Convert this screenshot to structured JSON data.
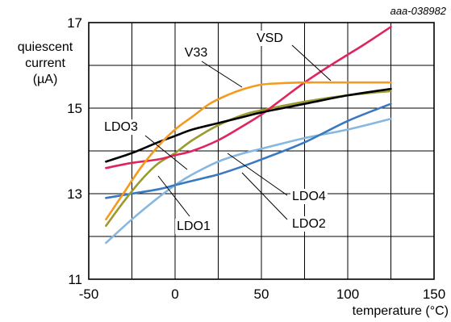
{
  "figure_id": "aaa-038982",
  "chart_data": {
    "type": "line",
    "title": "",
    "xlabel": "temperature (°C)",
    "ylabel": "quiescent current (µA)",
    "ylabel_lines": [
      "quiescent",
      "current",
      "(µA)"
    ],
    "xlim": [
      -50,
      150
    ],
    "ylim": [
      11,
      17
    ],
    "x_ticks": [
      -50,
      0,
      50,
      100,
      150
    ],
    "y_ticks": [
      11,
      13,
      15,
      17
    ],
    "grid": true,
    "legend": "none",
    "series": [
      {
        "name": "VSD",
        "color": "#e0245e",
        "points": [
          [
            -40,
            13.6
          ],
          [
            -25,
            13.72
          ],
          [
            -10,
            13.8
          ],
          [
            0,
            13.9
          ],
          [
            10,
            14.0
          ],
          [
            25,
            14.25
          ],
          [
            40,
            14.6
          ],
          [
            50,
            14.85
          ],
          [
            60,
            15.15
          ],
          [
            75,
            15.6
          ],
          [
            90,
            16.0
          ],
          [
            100,
            16.25
          ],
          [
            110,
            16.5
          ],
          [
            125,
            16.9
          ]
        ]
      },
      {
        "name": "V33",
        "color": "#f39a1f",
        "points": [
          [
            -40,
            12.4
          ],
          [
            -30,
            13.0
          ],
          [
            -20,
            13.6
          ],
          [
            -10,
            14.1
          ],
          [
            0,
            14.5
          ],
          [
            10,
            14.8
          ],
          [
            20,
            15.1
          ],
          [
            30,
            15.3
          ],
          [
            40,
            15.45
          ],
          [
            50,
            15.55
          ],
          [
            60,
            15.58
          ],
          [
            75,
            15.6
          ],
          [
            100,
            15.6
          ],
          [
            125,
            15.6
          ]
        ]
      },
      {
        "name": "LDO3",
        "color": "#000000",
        "points": [
          [
            -40,
            13.75
          ],
          [
            -25,
            13.95
          ],
          [
            -10,
            14.2
          ],
          [
            0,
            14.35
          ],
          [
            10,
            14.5
          ],
          [
            25,
            14.65
          ],
          [
            40,
            14.8
          ],
          [
            50,
            14.9
          ],
          [
            75,
            15.1
          ],
          [
            100,
            15.3
          ],
          [
            125,
            15.45
          ]
        ]
      },
      {
        "name": "LDO1",
        "color": "#9a9a2f",
        "points": [
          [
            -40,
            12.25
          ],
          [
            -30,
            12.8
          ],
          [
            -20,
            13.3
          ],
          [
            -10,
            13.7
          ],
          [
            0,
            13.95
          ],
          [
            10,
            14.25
          ],
          [
            25,
            14.6
          ],
          [
            40,
            14.85
          ],
          [
            50,
            14.95
          ],
          [
            75,
            15.15
          ],
          [
            100,
            15.3
          ],
          [
            125,
            15.4
          ]
        ]
      },
      {
        "name": "LDO4",
        "color": "#3a78c0",
        "points": [
          [
            -40,
            12.9
          ],
          [
            -25,
            13.0
          ],
          [
            -10,
            13.1
          ],
          [
            0,
            13.2
          ],
          [
            15,
            13.35
          ],
          [
            25,
            13.45
          ],
          [
            40,
            13.65
          ],
          [
            50,
            13.8
          ],
          [
            75,
            14.2
          ],
          [
            100,
            14.7
          ],
          [
            125,
            15.1
          ]
        ]
      },
      {
        "name": "LDO2",
        "color": "#86b7e0",
        "points": [
          [
            -40,
            11.85
          ],
          [
            -25,
            12.4
          ],
          [
            -10,
            12.9
          ],
          [
            0,
            13.2
          ],
          [
            10,
            13.45
          ],
          [
            25,
            13.75
          ],
          [
            40,
            13.95
          ],
          [
            50,
            14.05
          ],
          [
            75,
            14.3
          ],
          [
            100,
            14.5
          ],
          [
            125,
            14.75
          ]
        ]
      }
    ],
    "annotations": [
      {
        "text": "VSD",
        "for": "VSD"
      },
      {
        "text": "V33",
        "for": "V33"
      },
      {
        "text": "LDO3",
        "for": "LDO3"
      },
      {
        "text": "LDO1",
        "for": "LDO1"
      },
      {
        "text": "LDO4",
        "for": "LDO4"
      },
      {
        "text": "LDO2",
        "for": "LDO2"
      }
    ]
  }
}
